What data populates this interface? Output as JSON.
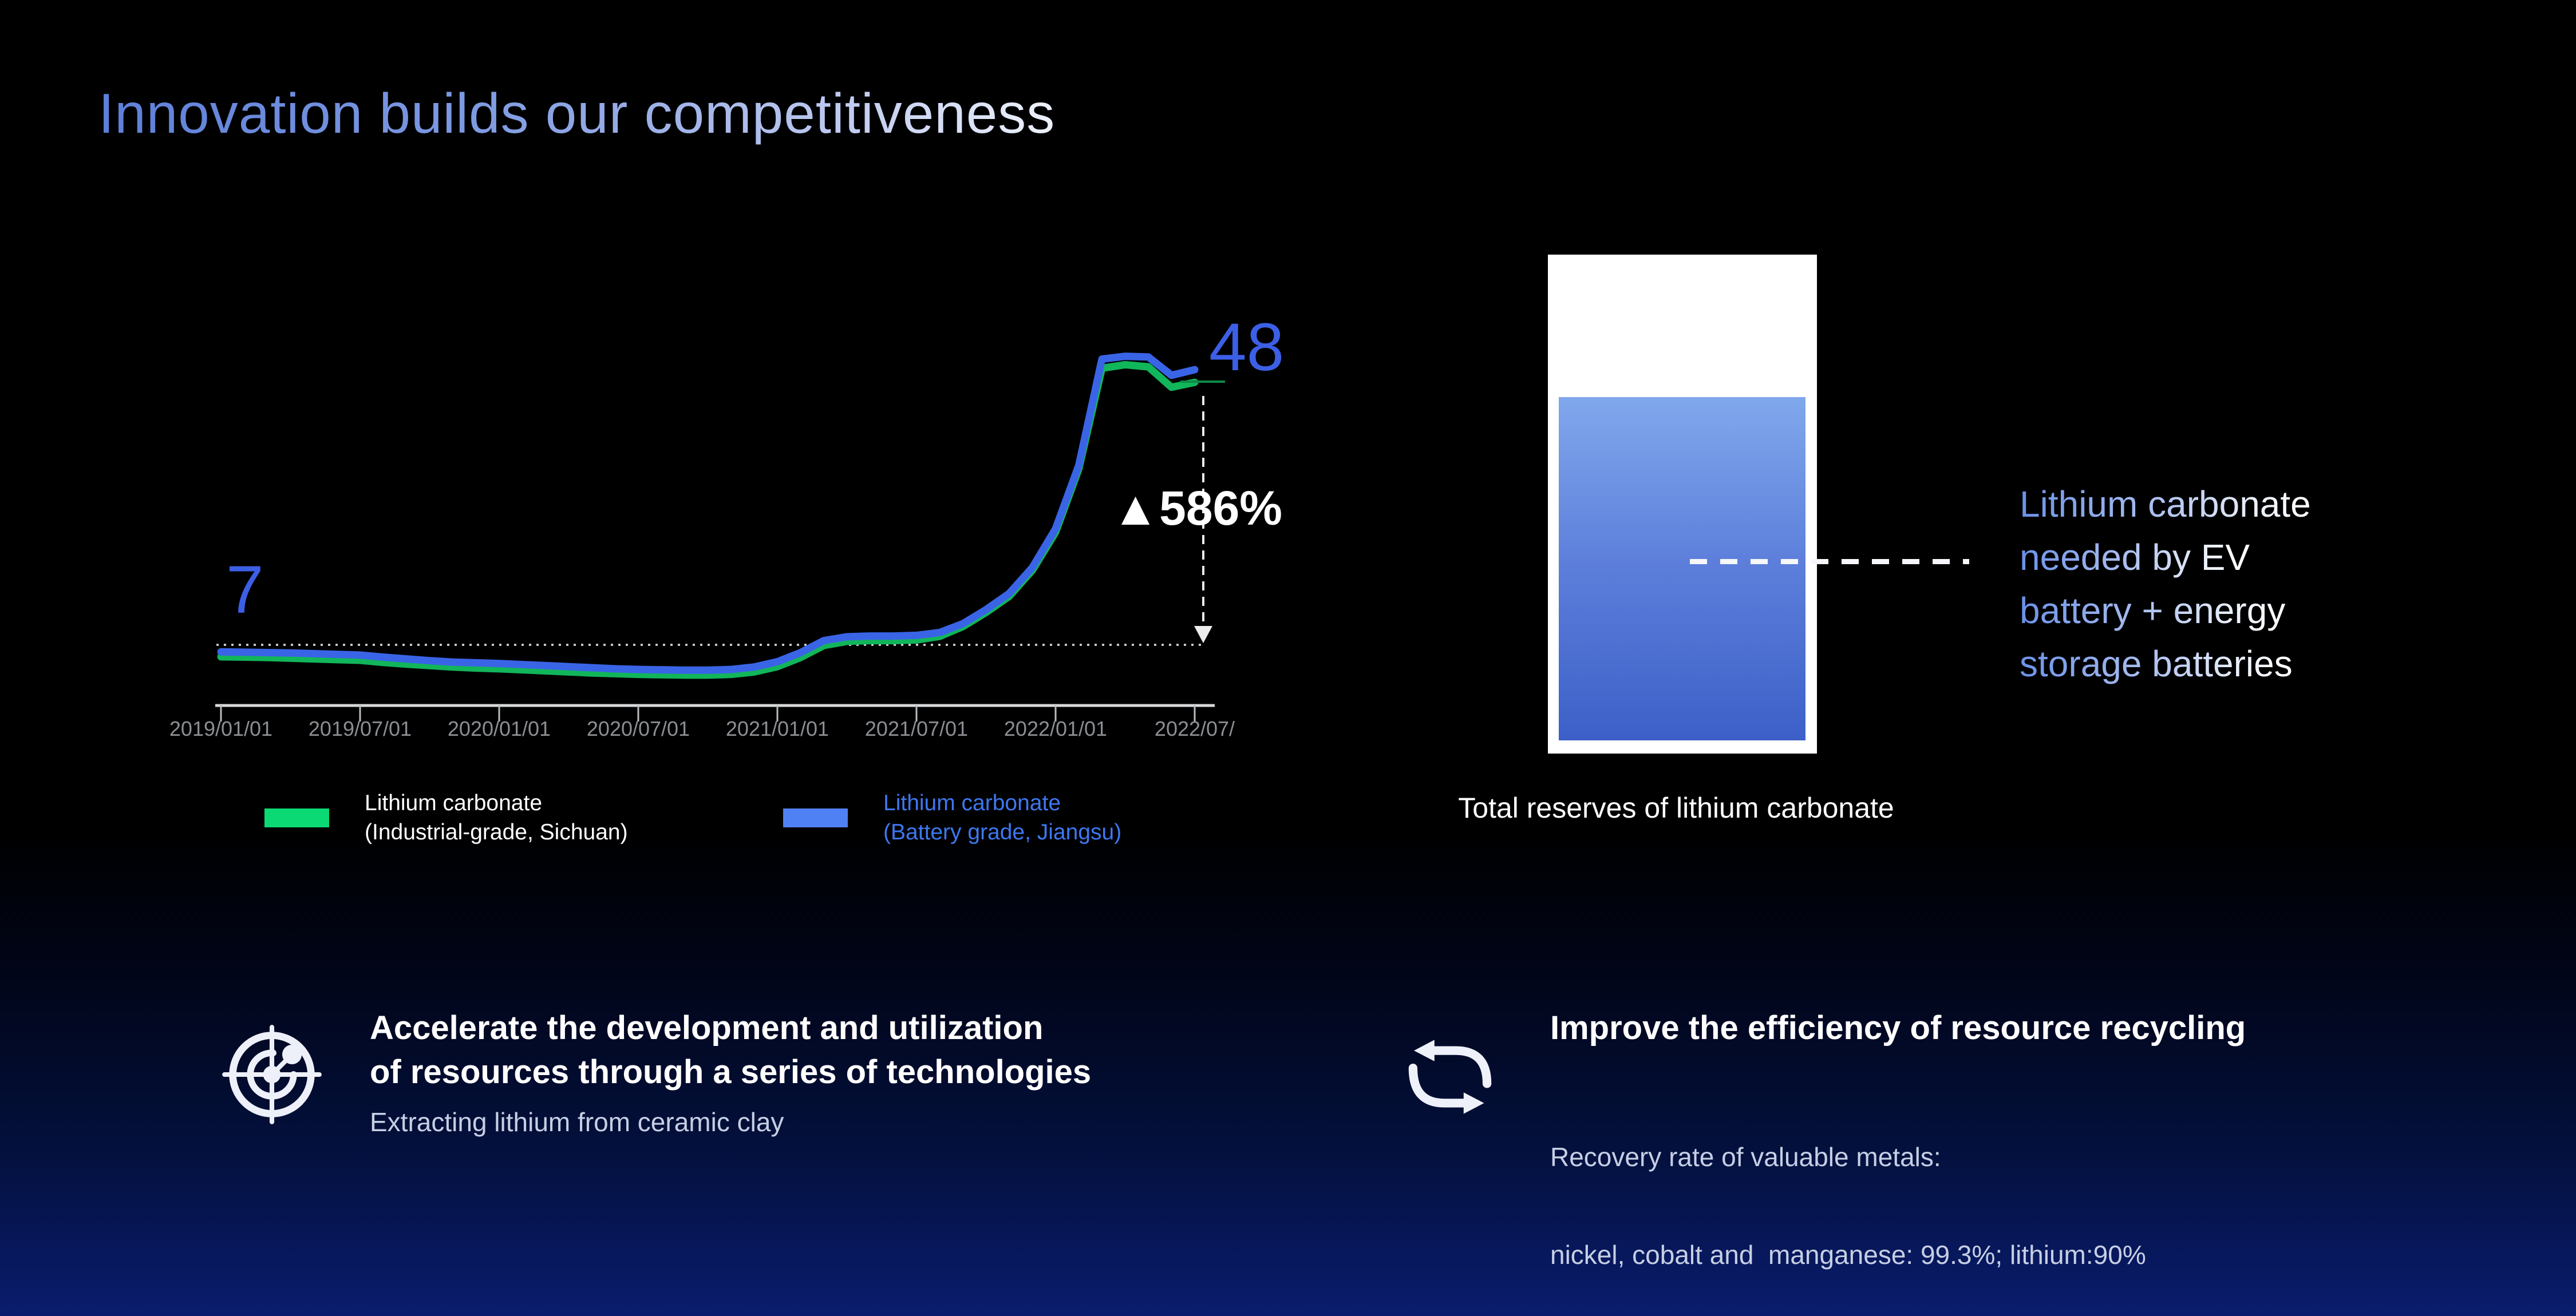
{
  "slide": {
    "title": "Innovation builds our competitiveness"
  },
  "chart": {
    "start_label": "7",
    "end_label": "48",
    "change_label": "▲586%",
    "x_ticks": [
      "2019/01/01",
      "2019/07/01",
      "2020/01/01",
      "2020/07/01",
      "2021/01/01",
      "2021/07/01",
      "2022/01/01",
      "2022/07/"
    ],
    "legend": [
      {
        "line1": "Lithium carbonate",
        "line2": "(Industrial-grade, Sichuan)",
        "swatch_color": "#0bd974"
      },
      {
        "line1": "Lithium carbonate",
        "line2": "(Battery grade, Jiangsu)",
        "swatch_color": "#4f80f4"
      }
    ]
  },
  "chart_data": {
    "type": "line",
    "title": "Lithium carbonate price trend",
    "xlabel": "",
    "ylabel": "",
    "grid": false,
    "legend_position": "bottom",
    "x": [
      "2019/01",
      "2019/02",
      "2019/03",
      "2019/04",
      "2019/05",
      "2019/06",
      "2019/07",
      "2019/08",
      "2019/09",
      "2019/10",
      "2019/11",
      "2019/12",
      "2020/01",
      "2020/02",
      "2020/03",
      "2020/04",
      "2020/05",
      "2020/06",
      "2020/07",
      "2020/08",
      "2020/09",
      "2020/10",
      "2020/11",
      "2020/12",
      "2021/01",
      "2021/02",
      "2021/03",
      "2021/04",
      "2021/05",
      "2021/06",
      "2021/07",
      "2021/08",
      "2021/09",
      "2021/10",
      "2021/11",
      "2021/12",
      "2022/01",
      "2022/02",
      "2022/03",
      "2022/04",
      "2022/05",
      "2022/06",
      "2022/07"
    ],
    "series": [
      {
        "name": "Lithium carbonate (Industrial-grade, Sichuan)",
        "color": "#11b55a",
        "values": [
          5.3,
          5.25,
          5.2,
          5.1,
          5.0,
          4.9,
          4.8,
          4.5,
          4.25,
          4.05,
          3.85,
          3.7,
          3.6,
          3.45,
          3.3,
          3.15,
          3.0,
          2.9,
          2.8,
          2.75,
          2.7,
          2.7,
          2.8,
          3.15,
          3.9,
          5.2,
          6.9,
          7.5,
          7.6,
          7.6,
          7.7,
          8.2,
          9.6,
          11.6,
          13.9,
          17.6,
          23.0,
          32.0,
          46.3,
          46.8,
          46.5,
          43.6,
          44.3
        ]
      },
      {
        "name": "Lithium carbonate (Battery grade, Jiangsu)",
        "color": "#3a64e6",
        "values": [
          6.0,
          5.95,
          5.9,
          5.85,
          5.75,
          5.65,
          5.55,
          5.25,
          5.0,
          4.75,
          4.55,
          4.45,
          4.35,
          4.2,
          4.05,
          3.9,
          3.75,
          3.6,
          3.5,
          3.45,
          3.4,
          3.4,
          3.5,
          3.85,
          4.6,
          5.9,
          7.6,
          8.15,
          8.25,
          8.25,
          8.35,
          8.75,
          10.0,
          12.0,
          14.3,
          18.0,
          23.5,
          32.5,
          47.6,
          48.0,
          47.9,
          45.3,
          46.1
        ]
      }
    ],
    "annotations": {
      "start_value": 7,
      "peak_value": 48,
      "change": "▲586%"
    }
  },
  "reserve_panel": {
    "caption": "Total reserves of lithium carbonate",
    "note_lines": [
      "Lithium carbonate",
      "needed by EV",
      "battery + energy",
      "storage batteries"
    ]
  },
  "highlights": [
    {
      "icon": "radar-icon",
      "title_line1": "Accelerate the development and utilization",
      "title_line2": "of resources through a series of technologies",
      "sub_line1": "Extracting lithium from ceramic clay",
      "sub_line2": ""
    },
    {
      "icon": "recycle-icon",
      "title_line1": "Improve the efficiency of resource recycling",
      "title_line2": "",
      "sub_line1": "Recovery rate of valuable metals:",
      "sub_line2": "nickel, cobalt and  manganese: 99.3%; lithium:90%"
    }
  ]
}
